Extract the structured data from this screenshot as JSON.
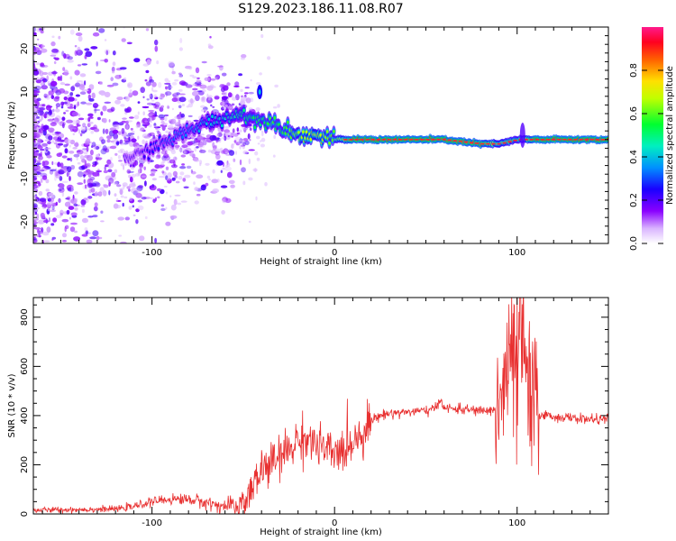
{
  "title": "S129.2023.186.11.08.R07",
  "chart_data": [
    {
      "type": "heatmap",
      "xlabel": "Height of straight line (km)",
      "ylabel": "Frequency (Hz)",
      "xlim": [
        -165,
        150
      ],
      "ylim": [
        -25,
        25
      ],
      "xticks": [
        -100,
        0,
        100
      ],
      "yticks": [
        -20,
        -10,
        0,
        10,
        20
      ],
      "colorbar": {
        "label": "Normalized spectral amplitude",
        "range": [
          0,
          1
        ],
        "ticks": [
          0.0,
          0.2,
          0.4,
          0.6,
          0.8
        ],
        "colormap": [
          "#ffffff",
          "#8a00ff",
          "#0000ff",
          "#00bfff",
          "#00ff60",
          "#ffff00",
          "#ff8000",
          "#ff0000",
          "#ff1a8c"
        ]
      },
      "ridge": {
        "x": [
          -110,
          -100,
          -90,
          -80,
          -70,
          -60,
          -50,
          -45,
          -40,
          -35,
          -30,
          -20,
          -10,
          0,
          10,
          20,
          40,
          60,
          80,
          90,
          100,
          110,
          130,
          150
        ],
        "y": [
          -5,
          -3,
          -1,
          1,
          3,
          4,
          5,
          4,
          3,
          4,
          2,
          0,
          0,
          -1,
          -1,
          -1,
          -1,
          -1,
          -2,
          -2,
          -1,
          -1,
          -1,
          -1
        ],
        "amplitude": [
          0.2,
          0.25,
          0.3,
          0.35,
          0.4,
          0.45,
          0.5,
          0.55,
          0.5,
          0.6,
          0.55,
          0.65,
          0.7,
          0.6,
          0.9,
          0.9,
          0.9,
          0.9,
          0.85,
          0.7,
          0.6,
          0.9,
          0.9,
          0.9
        ]
      },
      "annotation_spike": {
        "x": -41,
        "y": 10
      }
    },
    {
      "type": "line",
      "xlabel": "Height of straight line (km)",
      "ylabel": "SNR (10 * v/v)",
      "xlim": [
        -165,
        150
      ],
      "ylim": [
        0,
        880
      ],
      "xticks": [
        -100,
        0,
        100
      ],
      "yticks": [
        0,
        200,
        400,
        600,
        800
      ],
      "color": "#e83030",
      "series": [
        {
          "x": [
            -165,
            -140,
            -120,
            -110,
            -100,
            -90,
            -80,
            -70,
            -60,
            -50,
            -45,
            -40,
            -35,
            -30,
            -25,
            -20,
            -15,
            -10,
            -5,
            0,
            5,
            10,
            15,
            20,
            25,
            30,
            40,
            50,
            55,
            58,
            60,
            70,
            80,
            85,
            90,
            92,
            95,
            98,
            100,
            102,
            105,
            108,
            110,
            120,
            130,
            140,
            150
          ],
          "y": [
            15,
            18,
            20,
            30,
            50,
            60,
            60,
            45,
            30,
            40,
            100,
            180,
            200,
            230,
            260,
            300,
            310,
            280,
            260,
            240,
            260,
            300,
            330,
            380,
            400,
            410,
            415,
            420,
            425,
            470,
            430,
            425,
            420,
            420,
            430,
            500,
            580,
            650,
            520,
            720,
            600,
            420,
            410,
            395,
            390,
            385,
            385
          ]
        }
      ]
    }
  ]
}
